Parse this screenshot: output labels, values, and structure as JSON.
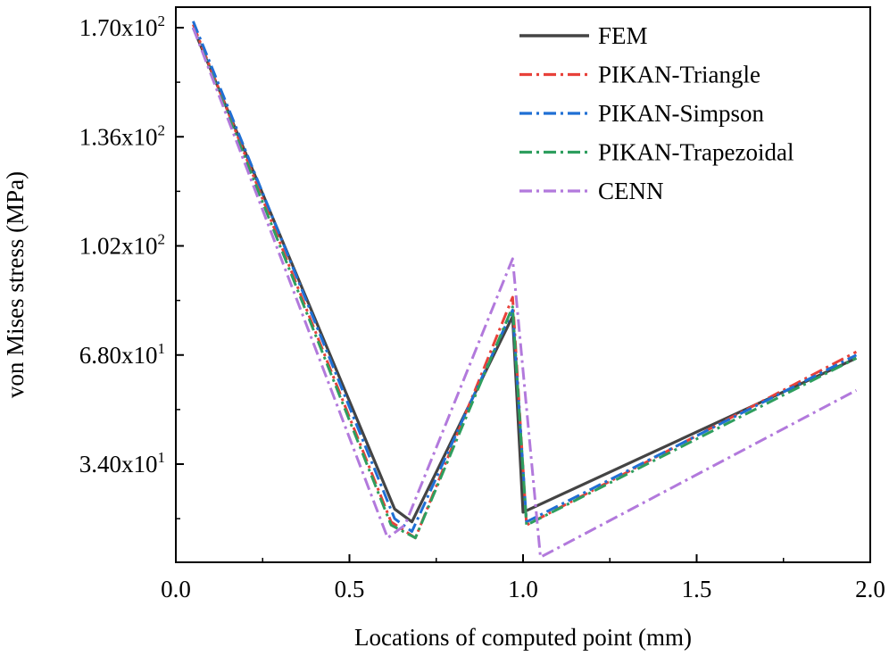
{
  "chart_data": {
    "type": "line",
    "title": "",
    "xlabel": "Locations of computed point (mm)",
    "ylabel": "von Mises stress (MPa)",
    "xlim": [
      0.0,
      2.0
    ],
    "ylim": [
      0,
      175
    ],
    "xticks": [
      0.0,
      0.5,
      1.0,
      1.5,
      2.0
    ],
    "xtick_labels": [
      "0.0",
      "0.5",
      "1.0",
      "1.5",
      "2.0"
    ],
    "yticks": [
      {
        "value": 170,
        "mantissa": "1.70x10",
        "exponent": "2"
      },
      {
        "value": 136,
        "mantissa": "1.36x10",
        "exponent": "2"
      },
      {
        "value": 102,
        "mantissa": "1.02x10",
        "exponent": "2"
      },
      {
        "value": 68,
        "mantissa": "6.80x10",
        "exponent": "1"
      },
      {
        "value": 34,
        "mantissa": "3.40x10",
        "exponent": "1"
      }
    ],
    "grid": false,
    "legend_position": "top-right",
    "series": [
      {
        "name": "FEM",
        "color": "#444444",
        "dash": "solid",
        "x": [
          0.05,
          0.63,
          0.68,
          0.97,
          1.0,
          1.96
        ],
        "y": [
          170,
          20,
          16,
          80,
          19,
          67
        ]
      },
      {
        "name": "PIKAN-Triangle",
        "color": "#e8413a",
        "dash": "dashdot",
        "x": [
          0.05,
          0.62,
          0.69,
          0.97,
          1.01,
          1.96
        ],
        "y": [
          171,
          16,
          11,
          86,
          15,
          69
        ]
      },
      {
        "name": "PIKAN-Simpson",
        "color": "#1f6fd4",
        "dash": "dashdot",
        "x": [
          0.05,
          0.63,
          0.68,
          0.97,
          1.01,
          1.96
        ],
        "y": [
          172,
          17,
          13,
          82,
          16,
          68
        ]
      },
      {
        "name": "PIKAN-Trapezoidal",
        "color": "#2e9e5e",
        "dash": "dashdot",
        "x": [
          0.05,
          0.62,
          0.69,
          0.97,
          1.01,
          1.96
        ],
        "y": [
          170,
          15,
          11,
          83,
          15,
          67
        ]
      },
      {
        "name": "CENN",
        "color": "#b279dc",
        "dash": "dashdot",
        "x": [
          0.05,
          0.61,
          0.66,
          0.97,
          1.05,
          1.96
        ],
        "y": [
          170,
          11,
          15,
          98,
          5,
          57
        ]
      }
    ]
  }
}
